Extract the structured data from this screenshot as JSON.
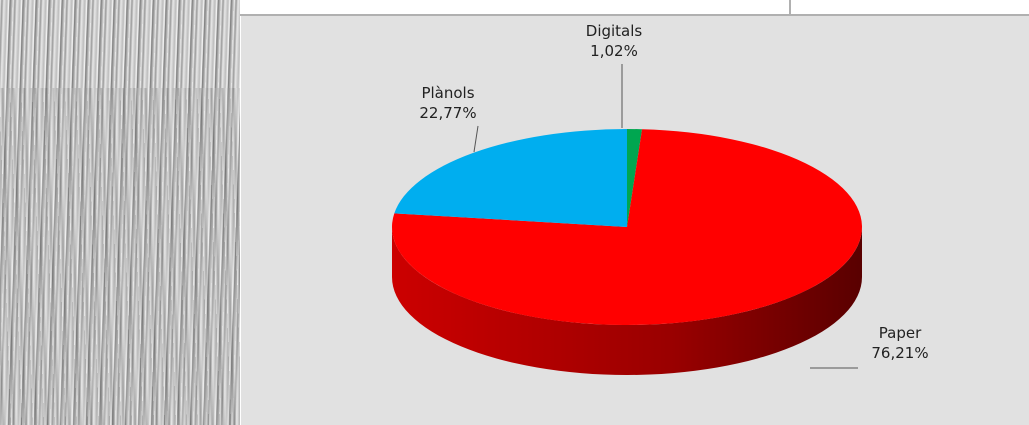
{
  "chart_data": {
    "type": "pie",
    "categories": [
      "Digitals",
      "Paper",
      "Plànols"
    ],
    "values": [
      1.02,
      76.21,
      22.77
    ],
    "value_labels": [
      "1,02%",
      "76,21%",
      "22,77%"
    ],
    "colors": [
      "#00a650",
      "#ff0000",
      "#00aeef"
    ]
  }
}
